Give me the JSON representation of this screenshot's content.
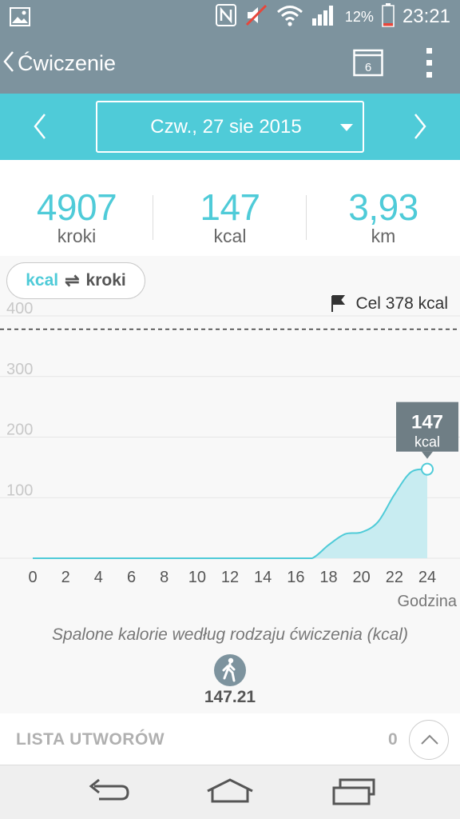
{
  "status_bar": {
    "battery_percent": "12%",
    "time": "23:21",
    "icons": [
      "image-icon",
      "nfc-icon",
      "sound-muted-icon",
      "wifi-icon",
      "signal-icon",
      "battery-icon"
    ]
  },
  "app_bar": {
    "title": "Ćwiczenie",
    "calendar_day": "6",
    "icons": [
      "back-chevron-icon",
      "calendar-icon",
      "overflow-menu-icon"
    ]
  },
  "date_bar": {
    "date": "Czw., 27 sie 2015"
  },
  "stats": [
    {
      "value": "4907",
      "unit": "kroki"
    },
    {
      "value": "147",
      "unit": "kcal"
    },
    {
      "value": "3,93",
      "unit": "km"
    }
  ],
  "toggle": {
    "active": "kcal",
    "inactive": "kroki"
  },
  "goal": {
    "label": "Cel 378 kcal"
  },
  "chart_data": {
    "type": "area",
    "x": [
      0,
      2,
      4,
      6,
      8,
      10,
      12,
      14,
      16,
      17,
      18,
      19,
      20,
      21,
      22,
      23,
      24
    ],
    "values": [
      0,
      0,
      0,
      0,
      0,
      0,
      0,
      0,
      0,
      0,
      22,
      40,
      43,
      60,
      105,
      142,
      147
    ],
    "x_ticks": [
      "0",
      "2",
      "4",
      "6",
      "8",
      "10",
      "12",
      "14",
      "16",
      "18",
      "20",
      "22",
      "24"
    ],
    "y_ticks": [
      "100",
      "200",
      "300",
      "400"
    ],
    "xlabel": "Godzina",
    "ylabel": "",
    "ylim": [
      0,
      400
    ],
    "xlim": [
      0,
      24
    ],
    "goal_line": 378,
    "tooltip": {
      "value": "147",
      "unit": "kcal"
    },
    "colors": {
      "line": "#4fcbd8",
      "fill": "#c8ecf1",
      "tooltip": "#6f7e85"
    }
  },
  "caption": "Spalone kalorie według rodzaju ćwiczenia (kcal)",
  "walking": {
    "value": "147.21",
    "icon": "walking-person-icon"
  },
  "playlist": {
    "label": "LISTA UTWORÓW",
    "count": "0"
  },
  "nav": {
    "icons": [
      "back-icon",
      "home-icon",
      "recent-apps-icon"
    ]
  },
  "colors": {
    "app_bar": "#7d939e",
    "date_bar": "#4fcbd8",
    "accent": "#4fcbd8"
  }
}
